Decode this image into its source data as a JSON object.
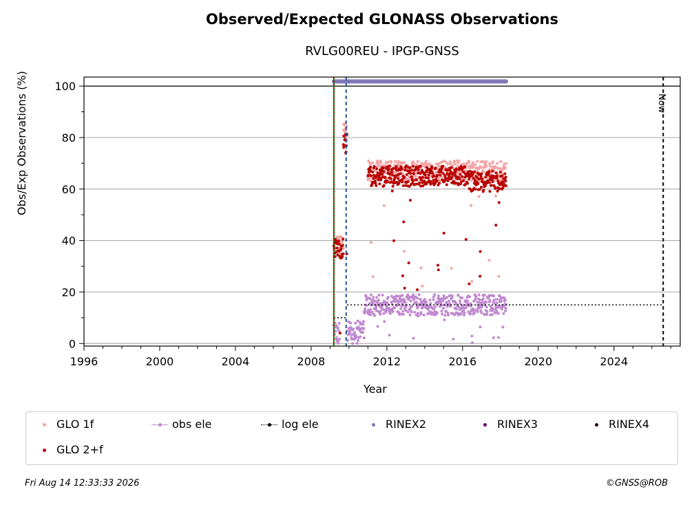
{
  "chart_data": {
    "type": "scatter",
    "title": "Observed/Expected GLONASS Observations",
    "subtitle": "RVLG00REU - IPGP-GNSS",
    "xlabel": "Year",
    "ylabel": "Obs/Exp Observations (%)",
    "xlim": [
      1996,
      2027.5
    ],
    "ylim": [
      -1,
      103.5
    ],
    "x_ticks": [
      1996,
      2000,
      2004,
      2008,
      2012,
      2016,
      2020,
      2024
    ],
    "y_ticks": [
      0,
      20,
      40,
      60,
      80,
      100
    ],
    "grid": "horizontal",
    "legend_placement": "below",
    "vertical_markers": [
      {
        "x": 2009.2,
        "style": "solid",
        "color": "#008000"
      },
      {
        "x": 2009.2,
        "style": "dotted",
        "color": "#c00000"
      },
      {
        "x": 2009.85,
        "style": "dashed",
        "color": "#1f4fa0"
      },
      {
        "x": 2026.6,
        "style": "dashed",
        "color": "#000000",
        "label": "Now"
      }
    ],
    "series": [
      {
        "name": "GLO 1f",
        "color": "#f4a6a6",
        "segments": [
          {
            "x_start": 2009.2,
            "x_end": 2009.7,
            "y_center": 38
          },
          {
            "x_start": 2009.7,
            "x_end": 2009.9,
            "y_center": 82
          },
          {
            "x_start": 2011.0,
            "x_end": 2018.3,
            "y_center": 67
          }
        ]
      },
      {
        "name": "GLO 2+f",
        "color": "#b80000",
        "segments": [
          {
            "x_start": 2009.2,
            "x_end": 2009.7,
            "y_center": 37
          },
          {
            "x_start": 2009.7,
            "x_end": 2009.9,
            "y_center": 78
          },
          {
            "x_start": 2011.0,
            "x_end": 2016.3,
            "y_center": 65
          },
          {
            "x_start": 2016.3,
            "x_end": 2018.3,
            "y_center": 63
          }
        ]
      },
      {
        "name": "obs ele",
        "color": "#c08ad0",
        "segments": [
          {
            "x_start": 2009.2,
            "x_end": 2009.5,
            "y_center": 4
          },
          {
            "x_start": 2009.9,
            "x_end": 2010.8,
            "y_center": 5
          },
          {
            "x_start": 2010.8,
            "x_end": 2018.3,
            "y_center": 15
          }
        ]
      },
      {
        "name": "log ele",
        "color": "#000000",
        "segments": [
          {
            "x_start": 2009.2,
            "x_end": 2009.9,
            "y_center": 10
          },
          {
            "x_start": 2009.9,
            "x_end": 2026.6,
            "y_center": 15
          }
        ]
      },
      {
        "name": "RINEX2",
        "color": "#8078b8",
        "segments": [
          {
            "x_start": 2009.2,
            "x_end": 2018.3,
            "y_center": 101.8
          }
        ]
      },
      {
        "name": "RINEX3",
        "color": "#6a0060",
        "segments": []
      },
      {
        "name": "RINEX4",
        "color": "#2a0020",
        "segments": []
      }
    ]
  },
  "legend": {
    "items": [
      {
        "label": "GLO 1f",
        "color": "#f4a6a6",
        "line": false
      },
      {
        "label": "obs ele",
        "color": "#c08ad0",
        "line": true
      },
      {
        "label": "log ele",
        "color": "#000000",
        "line": true
      },
      {
        "label": "RINEX2",
        "color": "#8078b8",
        "line": false
      },
      {
        "label": "RINEX3",
        "color": "#6a0060",
        "line": false
      },
      {
        "label": "RINEX4",
        "color": "#2a0020",
        "line": false
      },
      {
        "label": "GLO 2+f",
        "color": "#b80000",
        "line": false
      }
    ]
  },
  "now_label": "Now",
  "footer": {
    "date": "Fri Aug 14 12:33:33 2026",
    "copyright": "©GNSS@ROB"
  }
}
